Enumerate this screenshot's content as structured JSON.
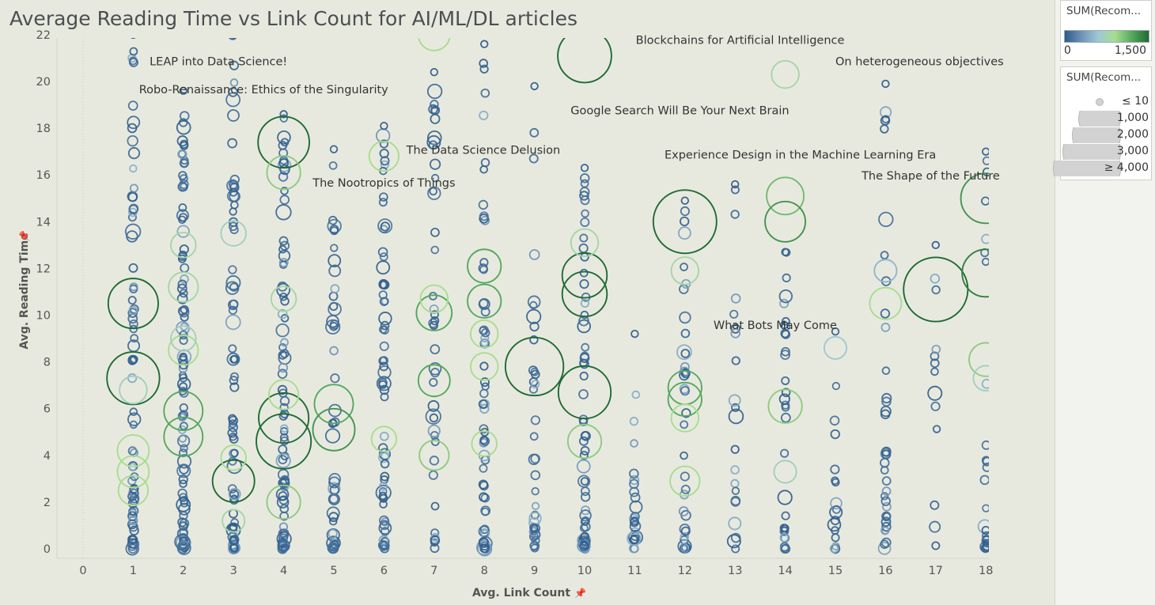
{
  "chart_title": "Average Reading Time vs Link Count for AI/ML/DL articles",
  "legends": {
    "color_title": "SUM(Recom...",
    "color_min": "0",
    "color_max": "1,500",
    "color_scale": [
      "#2c5b8a",
      "#6f93b8",
      "#9fc8d6",
      "#a7dd8f",
      "#55a860",
      "#1e6b34"
    ],
    "size_title": "SUM(Recom...",
    "size_items": [
      "≤ 10",
      "1,000",
      "2,000",
      "3,000",
      "≥ 4,000"
    ]
  },
  "chart_data": {
    "type": "scatter",
    "title": "Average Reading Time vs Link Count for AI/ML/DL articles",
    "xlabel": "Avg. Link Count",
    "ylabel": "Avg. Reading Time",
    "xlim": [
      -0.5,
      18.2
    ],
    "ylim": [
      -0.5,
      22.5
    ],
    "xticks": [
      0,
      1,
      2,
      3,
      4,
      5,
      6,
      7,
      8,
      9,
      10,
      11,
      12,
      13,
      14,
      15,
      16,
      17,
      18
    ],
    "yticks": [
      0,
      2,
      4,
      6,
      8,
      10,
      12,
      14,
      16,
      18,
      20,
      22
    ],
    "grid": "vertical dotted at x=0",
    "density_columns": [
      {
        "x": 1,
        "ymax": 22.0,
        "count": 70
      },
      {
        "x": 2,
        "ymax": 19.6,
        "count": 95
      },
      {
        "x": 3,
        "ymax": 22.0,
        "count": 70
      },
      {
        "x": 4,
        "ymax": 18.6,
        "count": 75
      },
      {
        "x": 5,
        "ymax": 17.1,
        "count": 45
      },
      {
        "x": 6,
        "ymax": 18.1,
        "count": 65
      },
      {
        "x": 7,
        "ymax": 20.4,
        "count": 40
      },
      {
        "x": 8,
        "ymax": 21.6,
        "count": 55
      },
      {
        "x": 9,
        "ymax": 19.8,
        "count": 35
      },
      {
        "x": 10,
        "ymax": 16.3,
        "count": 55
      },
      {
        "x": 11,
        "ymax": 9.2,
        "count": 22
      },
      {
        "x": 12,
        "ymax": 14.9,
        "count": 35
      },
      {
        "x": 13,
        "ymax": 15.6,
        "count": 20
      },
      {
        "x": 14,
        "ymax": 12.7,
        "count": 30
      },
      {
        "x": 15,
        "ymax": 9.3,
        "count": 16
      },
      {
        "x": 16,
        "ymax": 19.9,
        "count": 35
      },
      {
        "x": 17,
        "ymax": 13.0,
        "count": 12
      },
      {
        "x": 18,
        "ymax": 17.0,
        "count": 25
      }
    ],
    "highlighted_points": [
      {
        "x": 1,
        "y": 10.5,
        "r": 1000,
        "c": 1500
      },
      {
        "x": 1,
        "y": 7.3,
        "r": 1100,
        "c": 1500
      },
      {
        "x": 1,
        "y": 4.2,
        "r": 400,
        "c": 900
      },
      {
        "x": 1,
        "y": 3.3,
        "r": 400,
        "c": 900
      },
      {
        "x": 1,
        "y": 2.5,
        "r": 350,
        "c": 900
      },
      {
        "x": 1,
        "y": 6.8,
        "r": 300,
        "c": 700
      },
      {
        "x": 2,
        "y": 5.9,
        "r": 600,
        "c": 1200
      },
      {
        "x": 2,
        "y": 4.8,
        "r": 600,
        "c": 1200
      },
      {
        "x": 2,
        "y": 8.5,
        "r": 350,
        "c": 900
      },
      {
        "x": 2,
        "y": 11.2,
        "r": 350,
        "c": 800
      },
      {
        "x": 2,
        "y": 13.0,
        "r": 250,
        "c": 800
      },
      {
        "x": 2,
        "y": 9.0,
        "r": 250,
        "c": 700
      },
      {
        "x": 3,
        "y": 2.9,
        "r": 700,
        "c": 1500
      },
      {
        "x": 3,
        "y": 3.9,
        "r": 250,
        "c": 900
      },
      {
        "x": 3,
        "y": 13.5,
        "r": 250,
        "c": 700
      },
      {
        "x": 3,
        "y": 1.2,
        "r": 200,
        "c": 800
      },
      {
        "x": 4,
        "y": 17.4,
        "r": 1050,
        "c": 1500
      },
      {
        "x": 4,
        "y": 4.6,
        "r": 1200,
        "c": 1500
      },
      {
        "x": 4,
        "y": 5.6,
        "r": 1000,
        "c": 1500
      },
      {
        "x": 4,
        "y": 16.1,
        "r": 450,
        "c": 1000
      },
      {
        "x": 4,
        "y": 2.0,
        "r": 450,
        "c": 1000
      },
      {
        "x": 4,
        "y": 6.6,
        "r": 350,
        "c": 900
      },
      {
        "x": 4,
        "y": 10.7,
        "r": 250,
        "c": 800
      },
      {
        "x": 5,
        "y": 6.2,
        "r": 600,
        "c": 1200
      },
      {
        "x": 5,
        "y": 5.1,
        "r": 700,
        "c": 1300
      },
      {
        "x": 6,
        "y": 16.8,
        "r": 350,
        "c": 900
      },
      {
        "x": 6,
        "y": 4.7,
        "r": 250,
        "c": 900
      },
      {
        "x": 7,
        "y": 22.0,
        "r": 400,
        "c": 900
      },
      {
        "x": 7,
        "y": 10.1,
        "r": 500,
        "c": 1200
      },
      {
        "x": 7,
        "y": 10.7,
        "r": 300,
        "c": 900
      },
      {
        "x": 7,
        "y": 7.2,
        "r": 400,
        "c": 1200
      },
      {
        "x": 7,
        "y": 4.0,
        "r": 350,
        "c": 1000
      },
      {
        "x": 8,
        "y": 12.1,
        "r": 450,
        "c": 1200
      },
      {
        "x": 8,
        "y": 10.6,
        "r": 450,
        "c": 1200
      },
      {
        "x": 8,
        "y": 9.2,
        "r": 300,
        "c": 900
      },
      {
        "x": 8,
        "y": 7.8,
        "r": 300,
        "c": 900
      },
      {
        "x": 8,
        "y": 4.5,
        "r": 250,
        "c": 900
      },
      {
        "x": 9,
        "y": 7.8,
        "r": 1350,
        "c": 1500
      },
      {
        "x": 10,
        "y": 21.1,
        "r": 1150,
        "c": 1500
      },
      {
        "x": 10,
        "y": 11.7,
        "r": 800,
        "c": 1500
      },
      {
        "x": 10,
        "y": 10.9,
        "r": 800,
        "c": 1500
      },
      {
        "x": 10,
        "y": 6.7,
        "r": 1100,
        "c": 1500
      },
      {
        "x": 10,
        "y": 4.6,
        "r": 450,
        "c": 1000
      },
      {
        "x": 10,
        "y": 13.1,
        "r": 300,
        "c": 800
      },
      {
        "x": 12,
        "y": 14.0,
        "r": 1600,
        "c": 1500
      },
      {
        "x": 12,
        "y": 6.9,
        "r": 450,
        "c": 1200
      },
      {
        "x": 12,
        "y": 6.4,
        "r": 450,
        "c": 1200
      },
      {
        "x": 12,
        "y": 11.9,
        "r": 300,
        "c": 800
      },
      {
        "x": 12,
        "y": 2.9,
        "r": 350,
        "c": 900
      },
      {
        "x": 12,
        "y": 5.6,
        "r": 300,
        "c": 900
      },
      {
        "x": 14,
        "y": 20.3,
        "r": 300,
        "c": 800
      },
      {
        "x": 14,
        "y": 15.1,
        "r": 550,
        "c": 1100
      },
      {
        "x": 14,
        "y": 14.0,
        "r": 650,
        "c": 1300
      },
      {
        "x": 14,
        "y": 6.1,
        "r": 450,
        "c": 1000
      },
      {
        "x": 14,
        "y": 3.3,
        "r": 200,
        "c": 700
      },
      {
        "x": 15,
        "y": 8.6,
        "r": 200,
        "c": 600
      },
      {
        "x": 16,
        "y": 10.5,
        "r": 400,
        "c": 900
      },
      {
        "x": 16,
        "y": 11.9,
        "r": 200,
        "c": 500
      },
      {
        "x": 17,
        "y": 11.1,
        "r": 1650,
        "c": 1500
      },
      {
        "x": 18,
        "y": 15.0,
        "r": 1000,
        "c": 1300
      },
      {
        "x": 18,
        "y": 11.8,
        "r": 900,
        "c": 1400
      },
      {
        "x": 18,
        "y": 8.1,
        "r": 450,
        "c": 1000
      },
      {
        "x": 18,
        "y": 7.3,
        "r": 250,
        "c": 700
      }
    ],
    "annotations": [
      {
        "text": "LEAP into Data Science!",
        "x": 2.7,
        "y": 20.7,
        "anchor": "middle"
      },
      {
        "text": "Robo-Renaissance: Ethics of the Singularity",
        "x": 3.6,
        "y": 19.5,
        "anchor": "middle"
      },
      {
        "text": "The Data Science Delusion",
        "x": 7.98,
        "y": 16.9,
        "anchor": "middle"
      },
      {
        "text": "The Nootropics of Things",
        "x": 6.0,
        "y": 15.5,
        "anchor": "middle"
      },
      {
        "text": "Blockchains for Artificial Intelligence",
        "x": 13.1,
        "y": 21.6,
        "anchor": "middle"
      },
      {
        "text": "On heterogeneous objectives",
        "x": 15.0,
        "y": 20.7,
        "anchor": "start"
      },
      {
        "text": "Google Search Will Be Your Next Brain",
        "x": 11.9,
        "y": 18.6,
        "anchor": "middle"
      },
      {
        "text": "Experience Design in the Machine Learning Era",
        "x": 14.3,
        "y": 16.7,
        "anchor": "middle"
      },
      {
        "text": "The Shape of the Future",
        "x": 16.9,
        "y": 15.8,
        "anchor": "middle"
      },
      {
        "text": "What Bots May Come",
        "x": 13.8,
        "y": 9.4,
        "anchor": "middle"
      }
    ]
  }
}
